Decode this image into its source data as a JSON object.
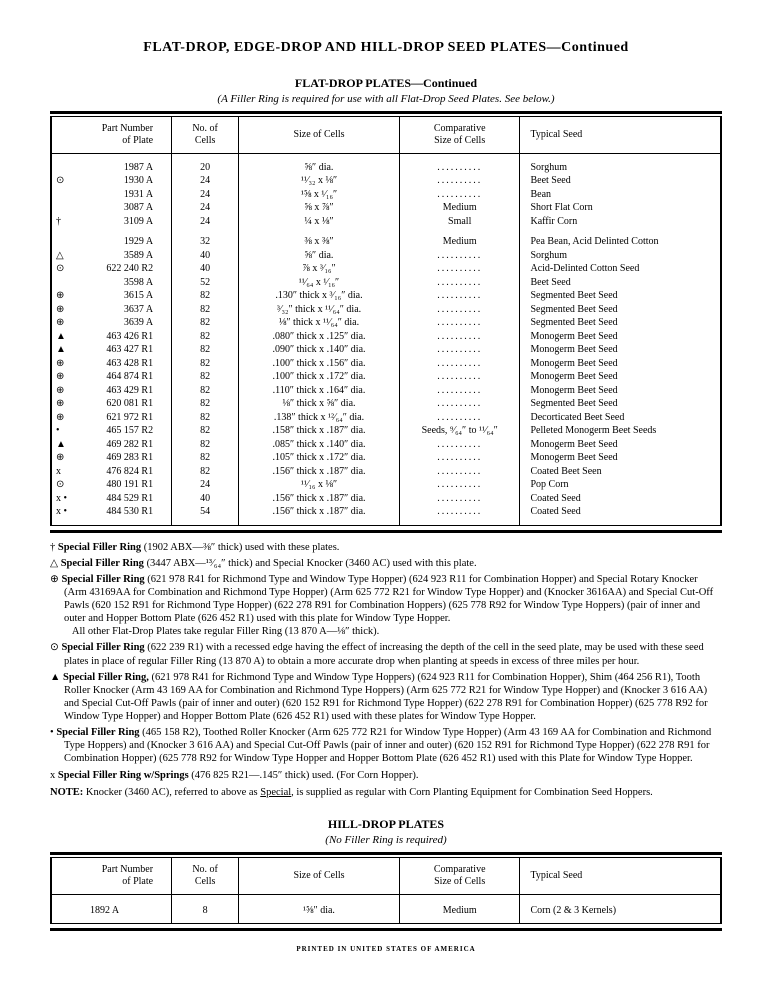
{
  "page_title": "FLAT-DROP, EDGE-DROP AND HILL-DROP SEED PLATES—Continued",
  "flat_drop": {
    "title": "FLAT-DROP PLATES—Continued",
    "subtitle": "(A Filler Ring is required for use with all Flat-Drop Seed Plates.   See below.)",
    "headers": {
      "part": "Part Number\nof Plate",
      "cells": "No. of\nCells",
      "size": "Size of Cells",
      "comp": "Comparative\nSize of Cells",
      "seed": "Typical Seed"
    },
    "rows1": [
      {
        "sym": "",
        "part": "1987 A",
        "cells": "20",
        "size": "⅝″ dia.",
        "comp": "..........",
        "seed": "Sorghum"
      },
      {
        "sym": "⊙",
        "part": "1930 A",
        "cells": "24",
        "size": "¹¹⁄₃₂ x ⅛″",
        "comp": "..........",
        "seed": "Beet Seed"
      },
      {
        "sym": "",
        "part": "1931 A",
        "cells": "24",
        "size": "¹⅝ x ¹⁄₁₆″",
        "comp": "..........",
        "seed": "Bean"
      },
      {
        "sym": "",
        "part": "3087 A",
        "cells": "24",
        "size": "⅝ x ⅞″",
        "comp": "Medium",
        "seed": "Short Flat Corn"
      },
      {
        "sym": "†",
        "part": "3109 A",
        "cells": "24",
        "size": "¼ x ⅛″",
        "comp": "Small",
        "seed": "Kaffir Corn"
      }
    ],
    "rows2": [
      {
        "sym": "",
        "part": "1929 A",
        "cells": "32",
        "size": "⅜ x ⅜″",
        "comp": "Medium",
        "seed": "Pea Bean, Acid Delinted Cotton"
      },
      {
        "sym": "△",
        "part": "3589 A",
        "cells": "40",
        "size": "⅝″ dia.",
        "comp": "..........",
        "seed": "Sorghum"
      },
      {
        "sym": "⊙",
        "part": "622 240 R2",
        "cells": "40",
        "size": "⅞ x ³⁄₁₆″",
        "comp": "..........",
        "seed": "Acid-Delinted Cotton Seed"
      },
      {
        "sym": "",
        "part": "3598 A",
        "cells": "52",
        "size": "¹¹⁄₆₄ x ¹⁄₁₆″",
        "comp": "..........",
        "seed": "Beet Seed"
      },
      {
        "sym": "⊕",
        "part": "3615 A",
        "cells": "82",
        "size": ".130″ thick x ³⁄₁₆″ dia.",
        "comp": "..........",
        "seed": "Segmented Beet Seed"
      },
      {
        "sym": "⊕",
        "part": "3637 A",
        "cells": "82",
        "size": "³⁄₃₂″ thick x ¹¹⁄₆₄″ dia.",
        "comp": "..........",
        "seed": "Segmented Beet Seed"
      },
      {
        "sym": "⊕",
        "part": "3639 A",
        "cells": "82",
        "size": "⅛″ thick x ¹¹⁄₆₄″ dia.",
        "comp": "..........",
        "seed": "Segmented Beet Seed"
      },
      {
        "sym": "▲",
        "part": "463 426 R1",
        "cells": "82",
        "size": ".080″ thick x .125″ dia.",
        "comp": "..........",
        "seed": "Monogerm Beet Seed"
      },
      {
        "sym": "▲",
        "part": "463 427 R1",
        "cells": "82",
        "size": ".090″ thick x .140″ dia.",
        "comp": "..........",
        "seed": "Monogerm Beet Seed"
      },
      {
        "sym": "⊕",
        "part": "463 428 R1",
        "cells": "82",
        "size": ".100″ thick x .156″ dia.",
        "comp": "..........",
        "seed": "Monogerm Beet Seed"
      },
      {
        "sym": "⊕",
        "part": "464 874 R1",
        "cells": "82",
        "size": ".100″ thick x .172″ dia.",
        "comp": "..........",
        "seed": "Monogerm Beet Seed"
      },
      {
        "sym": "⊕",
        "part": "463 429 R1",
        "cells": "82",
        "size": ".110″ thick x .164″ dia.",
        "comp": "..........",
        "seed": "Monogerm Beet Seed"
      },
      {
        "sym": "⊕",
        "part": "620 081 R1",
        "cells": "82",
        "size": "⅛″ thick x ⅝″ dia.",
        "comp": "..........",
        "seed": "Segmented Beet Seed"
      },
      {
        "sym": "⊕",
        "part": "621 972 R1",
        "cells": "82",
        "size": ".138″ thick x ¹²⁄₆₄″ dia.",
        "comp": "..........",
        "seed": "Decorticated Beet Seed"
      },
      {
        "sym": "•",
        "part": "465 157 R2",
        "cells": "82",
        "size": ".158″ thick x .187″ dia.",
        "comp": "Seeds, ⁹⁄₆₄″ to ¹¹⁄₆₄″",
        "seed": "Pelleted Monogerm Beet Seeds"
      },
      {
        "sym": "▲",
        "part": "469 282 R1",
        "cells": "82",
        "size": ".085″ thick x .140″ dia.",
        "comp": "..........",
        "seed": "Monogerm Beet Seed"
      },
      {
        "sym": "⊕",
        "part": "469 283 R1",
        "cells": "82",
        "size": ".105″ thick x .172″ dia.",
        "comp": "..........",
        "seed": "Monogerm Beet Seed"
      },
      {
        "sym": "x",
        "part": "476 824 R1",
        "cells": "82",
        "size": ".156″ thick x .187″ dia.",
        "comp": "..........",
        "seed": "Coated Beet Seen"
      },
      {
        "sym": "⊙",
        "part": "480 191 R1",
        "cells": "24",
        "size": "¹¹⁄₁₆ x ⅛″",
        "comp": "..........",
        "seed": "Pop Corn"
      },
      {
        "sym": "x •",
        "part": "484 529 R1",
        "cells": "40",
        "size": ".156″ thick x .187″ dia.",
        "comp": "..........",
        "seed": "Coated Seed"
      },
      {
        "sym": "x •",
        "part": "484 530 R1",
        "cells": "54",
        "size": ".156″ thick x .187″ dia.",
        "comp": "..........",
        "seed": "Coated Seed"
      }
    ]
  },
  "notes": [
    {
      "sym": "†",
      "text": "Special Filler Ring (1902 ABX—⅜″ thick) used with these plates."
    },
    {
      "sym": "△",
      "text": "Special Filler Ring (3447 ABX—¹³⁄₆₄″ thick) and Special Knocker (3460 AC) used with this plate."
    },
    {
      "sym": "⊕",
      "text": "Special Filler Ring (621 978 R41 for Richmond Type and Window Type Hopper) (624 923 R11 for Combination Hopper) and Special Rotary Knocker (Arm 43169AA for Combination and Richmond Type Hopper) (Arm 625 772 R21 for Window Type Hopper) and (Knocker 3616AA) and Special Cut-Off Pawls (620 152 R91 for Richmond Type Hopper) (622 278 R91 for Combination Hoppers) (625 778 R92 for Window Type Hoppers) (pair of inner and outer and Hopper Bottom Plate (626 452 R1) used with this plate for Window Type Hopper.\nAll other Flat-Drop Plates take regular Filler Ring (13 870 A—⅛″ thick)."
    },
    {
      "sym": "⊙",
      "text": "Special Filler Ring (622 239 R1) with a recessed edge having the effect of increasing the depth of the cell in the seed plate, may be used with these seed plates in place of regular Filler Ring (13 870 A) to obtain a more accurate drop when planting at speeds in excess of three miles per hour."
    },
    {
      "sym": "▲",
      "text": "Special Filler Ring, (621 978 R41 for Richmond Type and Window Type Hoppers) (624 923 R11 for Combination Hopper), Shim (464 256 R1), Tooth Roller Knocker (Arm 43 169 AA for Combination and Richmond Type Hoppers) (Arm 625 772 R21 for Window Type Hopper) and (Knocker 3 616 AA) and Special Cut-Off Pawls (pair of inner and outer) (620 152 R91 for Richmond Type Hopper) (622 278 R91 for Combination Hopper) (625 778 R92 for Window Type Hopper) and Hopper Bottom Plate (626 452 R1) used with these plates for Window Type Hopper."
    },
    {
      "sym": "•",
      "text": "Special Filler Ring (465 158 R2), Toothed Roller Knocker (Arm 625 772 R21 for Window Type Hopper) (Arm 43 169 AA for Combination and Richmond Type Hoppers) and (Knocker 3 616 AA) and Special Cut-Off Pawls (pair of inner and outer) (620 152 R91 for Richmond Type Hopper) (622 278 R91 for Combination Hopper) (625 778 R92 for Window Type Hopper and Hopper Bottom Plate (626 452 R1) used with this Plate for Window Type Hopper."
    },
    {
      "sym": "x",
      "text": "Special Filler Ring w/Springs (476 825 R21—.145″ thick) used. (For Corn Hopper)."
    }
  ],
  "note_final": "NOTE:   Knocker (3460 AC), referred to above as Special, is supplied as regular with Corn Planting Equipment for Combination Seed Hoppers.",
  "hill_drop": {
    "title": "HILL-DROP PLATES",
    "subtitle": "(No Filler Ring is required)",
    "row": {
      "part": "1892 A",
      "cells": "8",
      "size": "¹⅝″ dia.",
      "comp": "Medium",
      "seed": "Corn (2 & 3 Kernels)"
    }
  },
  "footer": "PRINTED IN UNITED STATES OF AMERICA"
}
